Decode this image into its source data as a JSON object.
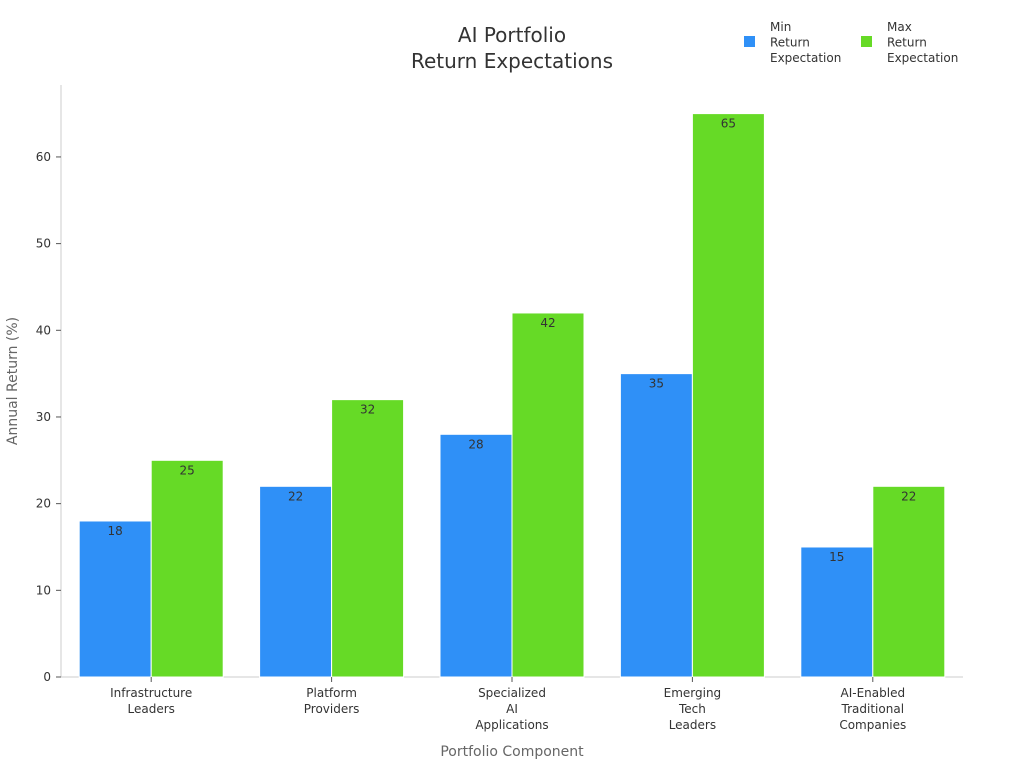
{
  "chart_data": {
    "type": "bar",
    "title": [
      "AI Portfolio",
      "Return Expectations"
    ],
    "xlabel": "Portfolio Component",
    "ylabel": "Annual Return (%)",
    "categories": [
      "Infrastructure Leaders",
      "Platform Providers",
      "Specialized AI Applications",
      "Emerging Tech Leaders",
      "AI-Enabled Traditional Companies"
    ],
    "series": [
      {
        "name": "Min Return Expectation",
        "values": [
          18,
          22,
          28,
          35,
          15
        ],
        "color": "#2f90f7"
      },
      {
        "name": "Max Return Expectation",
        "values": [
          25,
          32,
          42,
          65,
          22
        ],
        "color": "#66da26"
      }
    ],
    "ylim": [
      0,
      68.3
    ],
    "yticks": [
      0,
      10,
      20,
      30,
      40,
      50,
      60
    ],
    "grid": false,
    "legend": "top-right",
    "data_labels": true
  }
}
